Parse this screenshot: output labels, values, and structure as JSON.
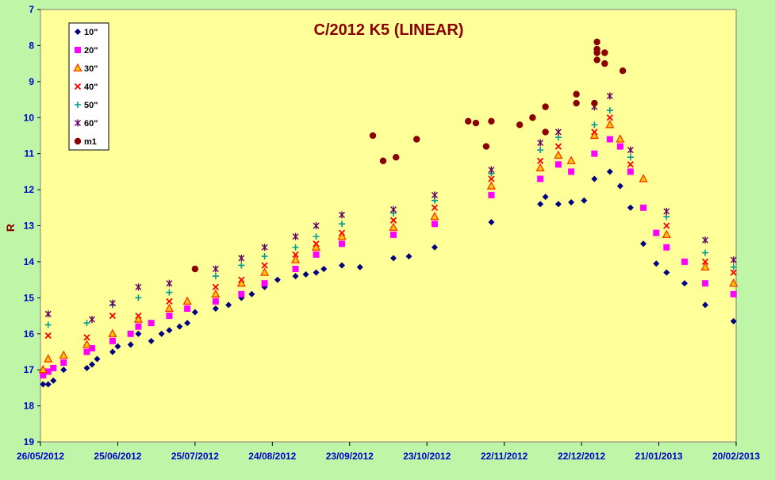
{
  "colors": {
    "background": "#bff5a6",
    "plot_area": "#ffff99",
    "title": "#8b0000",
    "axis_text": "#0000cc",
    "ylabel": "#8b0000"
  },
  "chart_data": {
    "type": "scatter",
    "title": "C/2012 K5 (LINEAR)",
    "xlabel": "",
    "ylabel": "R",
    "y_reversed": true,
    "ylim": [
      7,
      19
    ],
    "xlim": [
      "2012-05-26",
      "2013-02-20"
    ],
    "x_ticks": [
      "26/05/2012",
      "25/06/2012",
      "25/07/2012",
      "24/08/2012",
      "23/09/2012",
      "23/10/2012",
      "22/11/2012",
      "22/12/2012",
      "21/01/2013",
      "20/02/2013"
    ],
    "y_ticks": [
      7,
      8,
      9,
      10,
      11,
      12,
      13,
      14,
      15,
      16,
      17,
      18,
      19
    ],
    "grid": false,
    "legend_position": "top-left",
    "series": [
      {
        "name": "10\"",
        "marker": "diamond",
        "color": "#000080",
        "x": [
          "2012-05-27",
          "2012-05-29",
          "2012-05-31",
          "2012-06-04",
          "2012-06-13",
          "2012-06-15",
          "2012-06-17",
          "2012-06-23",
          "2012-06-25",
          "2012-06-30",
          "2012-07-03",
          "2012-07-08",
          "2012-07-12",
          "2012-07-15",
          "2012-07-19",
          "2012-07-22",
          "2012-07-25",
          "2012-08-02",
          "2012-08-07",
          "2012-08-12",
          "2012-08-16",
          "2012-08-21",
          "2012-08-26",
          "2012-09-02",
          "2012-09-06",
          "2012-09-10",
          "2012-09-13",
          "2012-09-20",
          "2012-09-27",
          "2012-10-10",
          "2012-10-16",
          "2012-10-26",
          "2012-11-17",
          "2012-12-06",
          "2012-12-08",
          "2012-12-13",
          "2012-12-18",
          "2012-12-23",
          "2012-12-27",
          "2013-01-02",
          "2013-01-06",
          "2013-01-10",
          "2013-01-15",
          "2013-01-20",
          "2013-01-24",
          "2013-01-31",
          "2013-02-08",
          "2013-02-19"
        ],
        "y": [
          17.4,
          17.4,
          17.3,
          17.0,
          16.95,
          16.85,
          16.7,
          16.5,
          16.35,
          16.3,
          16.0,
          16.2,
          16.0,
          15.9,
          15.8,
          15.7,
          15.4,
          15.3,
          15.2,
          15.0,
          14.9,
          14.7,
          14.5,
          14.4,
          14.35,
          14.3,
          14.2,
          14.1,
          14.15,
          13.9,
          13.85,
          13.6,
          12.9,
          12.4,
          12.2,
          12.4,
          12.35,
          12.3,
          11.7,
          11.5,
          11.9,
          12.5,
          13.5,
          14.05,
          14.3,
          14.6,
          15.2,
          15.65
        ]
      },
      {
        "name": "20\"",
        "marker": "square",
        "color": "#ff00ff",
        "x": [
          "2012-05-27",
          "2012-05-29",
          "2012-05-31",
          "2012-06-04",
          "2012-06-13",
          "2012-06-15",
          "2012-06-23",
          "2012-06-30",
          "2012-07-03",
          "2012-07-08",
          "2012-07-15",
          "2012-07-22",
          "2012-08-02",
          "2012-08-12",
          "2012-08-21",
          "2012-09-02",
          "2012-09-10",
          "2012-09-20",
          "2012-10-10",
          "2012-10-26",
          "2012-11-17",
          "2012-12-06",
          "2012-12-13",
          "2012-12-18",
          "2012-12-27",
          "2013-01-02",
          "2013-01-06",
          "2013-01-10",
          "2013-01-15",
          "2013-01-20",
          "2013-01-24",
          "2013-01-31",
          "2013-02-08",
          "2013-02-19"
        ],
        "y": [
          17.15,
          17.05,
          16.95,
          16.8,
          16.5,
          16.4,
          16.2,
          16.0,
          15.8,
          15.7,
          15.5,
          15.3,
          15.1,
          14.9,
          14.6,
          14.2,
          13.8,
          13.5,
          13.25,
          12.95,
          12.15,
          11.7,
          11.3,
          11.5,
          11.0,
          10.6,
          10.8,
          11.5,
          12.5,
          13.2,
          13.6,
          14.0,
          14.6,
          14.9
        ]
      },
      {
        "name": "30\"",
        "marker": "triangle",
        "color": "#ff3300",
        "x": [
          "2012-05-27",
          "2012-05-29",
          "2012-06-04",
          "2012-06-13",
          "2012-06-23",
          "2012-07-03",
          "2012-07-15",
          "2012-07-22",
          "2012-08-02",
          "2012-08-12",
          "2012-08-21",
          "2012-09-02",
          "2012-09-10",
          "2012-09-20",
          "2012-10-10",
          "2012-10-26",
          "2012-11-17",
          "2012-12-06",
          "2012-12-13",
          "2012-12-18",
          "2012-12-27",
          "2013-01-02",
          "2013-01-06",
          "2013-01-15",
          "2013-01-24",
          "2013-02-08",
          "2013-02-19"
        ],
        "y": [
          17.0,
          16.7,
          16.6,
          16.3,
          16.0,
          15.6,
          15.3,
          15.1,
          14.9,
          14.6,
          14.3,
          13.95,
          13.6,
          13.3,
          13.05,
          12.75,
          11.9,
          11.4,
          11.05,
          11.2,
          10.5,
          10.2,
          10.6,
          11.7,
          13.25,
          14.15,
          14.6
        ]
      },
      {
        "name": "40\"",
        "marker": "x",
        "color": "#ff0000",
        "x": [
          "2012-05-29",
          "2012-06-13",
          "2012-06-23",
          "2012-07-03",
          "2012-07-15",
          "2012-08-02",
          "2012-08-12",
          "2012-08-21",
          "2012-09-02",
          "2012-09-10",
          "2012-09-20",
          "2012-10-10",
          "2012-10-26",
          "2012-11-17",
          "2012-12-06",
          "2012-12-13",
          "2012-12-27",
          "2013-01-02",
          "2013-01-10",
          "2013-01-24",
          "2013-02-08",
          "2013-02-19"
        ],
        "y": [
          16.05,
          16.1,
          15.5,
          15.5,
          15.1,
          14.7,
          14.5,
          14.1,
          13.8,
          13.5,
          13.2,
          12.85,
          12.5,
          11.7,
          11.2,
          10.8,
          10.4,
          10.0,
          11.3,
          13.0,
          14.0,
          14.3
        ]
      },
      {
        "name": "50\"",
        "marker": "plus",
        "color": "#009999",
        "x": [
          "2012-05-29",
          "2012-06-13",
          "2012-06-23",
          "2012-07-03",
          "2012-07-15",
          "2012-08-02",
          "2012-08-12",
          "2012-08-21",
          "2012-09-02",
          "2012-09-10",
          "2012-09-20",
          "2012-10-10",
          "2012-10-26",
          "2012-11-17",
          "2012-12-06",
          "2012-12-13",
          "2012-12-27",
          "2013-01-02",
          "2013-01-10",
          "2013-01-24",
          "2013-02-08",
          "2013-02-19"
        ],
        "y": [
          15.75,
          15.7,
          15.2,
          15.0,
          14.85,
          14.4,
          14.1,
          13.85,
          13.6,
          13.3,
          12.95,
          12.65,
          12.3,
          11.55,
          10.9,
          10.55,
          10.2,
          9.8,
          11.1,
          12.75,
          13.75,
          14.15
        ]
      },
      {
        "name": "60\"",
        "marker": "star",
        "color": "#660066",
        "x": [
          "2012-05-29",
          "2012-06-15",
          "2012-06-23",
          "2012-07-03",
          "2012-07-15",
          "2012-08-02",
          "2012-08-12",
          "2012-08-21",
          "2012-09-02",
          "2012-09-10",
          "2012-09-20",
          "2012-10-10",
          "2012-10-26",
          "2012-11-17",
          "2012-12-06",
          "2012-12-13",
          "2012-12-27",
          "2013-01-02",
          "2013-01-10",
          "2013-01-24",
          "2013-02-08",
          "2013-02-19"
        ],
        "y": [
          15.45,
          15.6,
          15.15,
          14.7,
          14.6,
          14.2,
          13.9,
          13.6,
          13.3,
          13.0,
          12.7,
          12.55,
          12.15,
          11.45,
          10.7,
          10.4,
          9.7,
          9.4,
          10.9,
          12.6,
          13.4,
          13.95
        ]
      },
      {
        "name": "m1",
        "marker": "circle",
        "color": "#8b0000",
        "x": [
          "2012-07-25",
          "2012-10-02",
          "2012-10-06",
          "2012-10-11",
          "2012-10-19",
          "2012-11-08",
          "2012-11-11",
          "2012-11-15",
          "2012-11-17",
          "2012-11-28",
          "2012-12-03",
          "2012-12-08",
          "2012-12-08",
          "2012-12-20",
          "2012-12-20",
          "2012-12-27",
          "2012-12-28",
          "2012-12-28",
          "2012-12-28",
          "2012-12-28",
          "2012-12-31",
          "2012-12-31",
          "2013-01-07"
        ],
        "y": [
          14.2,
          10.5,
          11.2,
          11.1,
          10.6,
          10.1,
          10.15,
          10.8,
          10.1,
          10.2,
          10.0,
          9.7,
          10.4,
          9.35,
          9.6,
          9.6,
          7.9,
          8.1,
          8.2,
          8.4,
          8.2,
          8.5,
          8.7
        ]
      }
    ]
  }
}
